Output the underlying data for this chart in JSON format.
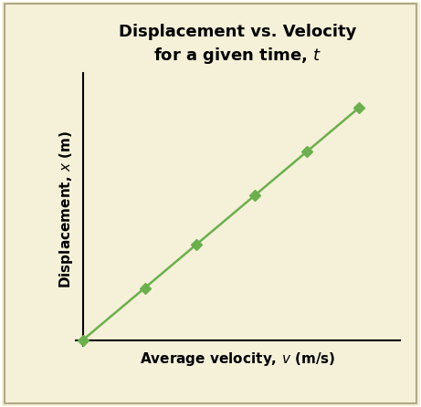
{
  "title_line1": "Displacement vs. Velocity",
  "title_line2": "for a given time, $\\mathbf{\\mathit{t}}$",
  "ylabel": "Displacement, $\\mathbf{\\mathit{x}}$ (m)",
  "xlabel": "Average velocity, $\\mathbf{\\mathit{v}}$ (m/s)",
  "x_data": [
    0,
    0.18,
    0.33,
    0.5,
    0.65,
    0.8
  ],
  "y_data": [
    0,
    0.18,
    0.33,
    0.5,
    0.65,
    0.8
  ],
  "line_color": "#6ab04c",
  "marker_color": "#6ab04c",
  "marker_style": "D",
  "marker_size": 6,
  "line_width": 1.8,
  "background_color": "#f5f0d8",
  "border_color": "#c8c0a0",
  "title_fontsize": 13,
  "label_fontsize": 11,
  "xlim": [
    -0.02,
    0.92
  ],
  "ylim": [
    -0.02,
    0.92
  ]
}
